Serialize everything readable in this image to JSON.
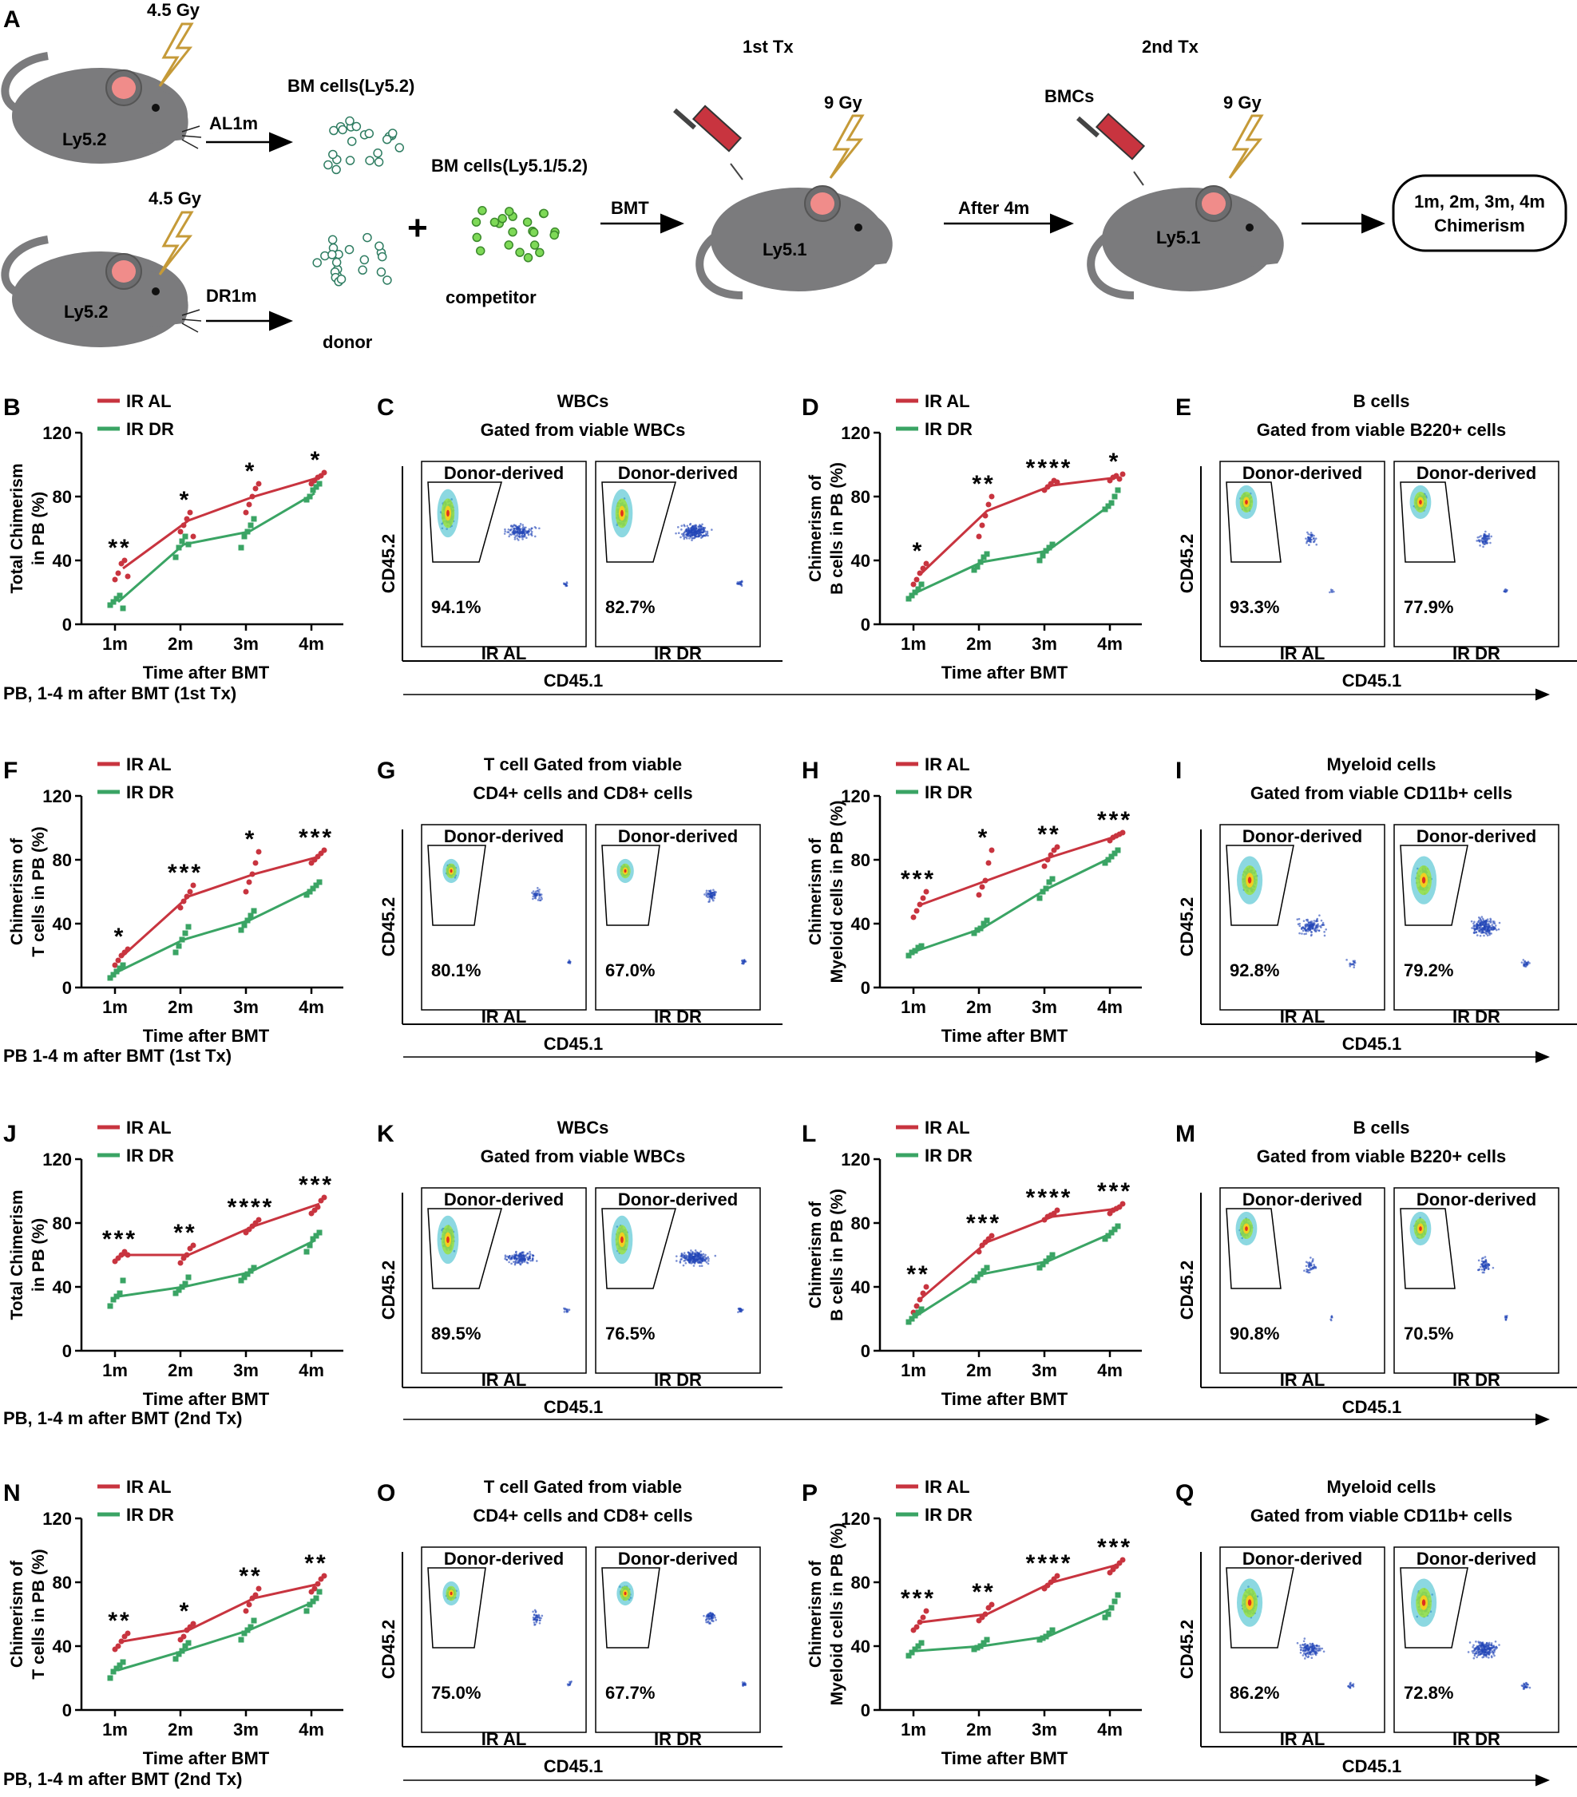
{
  "colors": {
    "al": "#c8343f",
    "dr": "#3aa464",
    "axis": "#000000",
    "dots": "#2346b8",
    "mouse": "#7b7b7d",
    "ear": "#f08c8a",
    "bolt": "#c59a38",
    "syringe": "#c8343f",
    "cells_donor": "#2f7d62",
    "cells_comp": "#7ed957"
  },
  "schematic": {
    "letter": "A",
    "gy_top": "4.5 Gy",
    "gy_bottom": "4.5 Gy",
    "mouse_top": "Ly5.2",
    "mouse_bottom": "Ly5.2",
    "arrow_top": "AL1m",
    "arrow_bottom": "DR1m",
    "bm_top": "BM cells(Ly5.2)",
    "donor": "donor",
    "plus": "+",
    "bm_comp": "BM cells(Ly5.1/5.2)",
    "competitor": "competitor",
    "bmt": "BMT",
    "tx1": "1st Tx",
    "gy1": "9 Gy",
    "recipient1": "Ly5.1",
    "after": "After 4m",
    "tx2": "2nd Tx",
    "bmcs": "BMCs",
    "gy2": "9 Gy",
    "recipient2": "Ly5.1",
    "result_line1": "1m, 2m, 3m, 4m",
    "result_line2": "Chimerism"
  },
  "row_captions": [
    "PB, 1-4 m after BMT  (1st Tx)",
    "PB 1-4 m after BMT  (1st Tx)",
    "PB, 1-4 m after BMT  (2nd Tx)",
    "PB, 1-4 m after BMT  (2nd Tx)"
  ],
  "chart_data": [
    {
      "panel": "B",
      "type": "scatter",
      "ylabel": "Total Chimerism\nin PB (%)",
      "xlabel": "Time after BMT",
      "categories": [
        "1m",
        "2m",
        "3m",
        "4m"
      ],
      "ylim": [
        0,
        120
      ],
      "yticks": [
        0,
        40,
        80,
        120
      ],
      "legend": [
        "IR AL",
        "IR DR"
      ],
      "sig": [
        "**",
        "*",
        "*",
        "*"
      ],
      "series": [
        {
          "name": "IR AL",
          "means": [
            35,
            65,
            80,
            92
          ],
          "points": [
            [
              28,
              32,
              38,
              40,
              30
            ],
            [
              58,
              62,
              66,
              70,
              55
            ],
            [
              70,
              75,
              80,
              85,
              88
            ],
            [
              88,
              90,
              92,
              93,
              95
            ]
          ]
        },
        {
          "name": "IR DR",
          "means": [
            14,
            50,
            58,
            82
          ],
          "points": [
            [
              12,
              14,
              16,
              18,
              10
            ],
            [
              42,
              48,
              52,
              55,
              50
            ],
            [
              48,
              55,
              58,
              62,
              66
            ],
            [
              78,
              80,
              84,
              86,
              88
            ]
          ]
        }
      ]
    },
    {
      "panel": "D",
      "type": "scatter",
      "ylabel": "Chimerism of\nB cells in PB (%)",
      "xlabel": "Time after BMT",
      "categories": [
        "1m",
        "2m",
        "3m",
        "4m"
      ],
      "ylim": [
        0,
        120
      ],
      "yticks": [
        0,
        40,
        80,
        120
      ],
      "legend": [
        "IR AL",
        "IR DR"
      ],
      "sig": [
        "*",
        "**",
        "****",
        "*"
      ],
      "series": [
        {
          "name": "IR AL",
          "means": [
            32,
            71,
            87,
            92
          ],
          "points": [
            [
              25,
              28,
              32,
              35,
              38
            ],
            [
              55,
              62,
              68,
              75,
              80
            ],
            [
              84,
              86,
              88,
              90,
              89
            ],
            [
              90,
              92,
              93,
              91,
              94
            ]
          ]
        },
        {
          "name": "IR DR",
          "means": [
            20,
            39,
            46,
            76
          ],
          "points": [
            [
              16,
              18,
              20,
              22,
              25
            ],
            [
              34,
              36,
              39,
              42,
              44
            ],
            [
              40,
              43,
              46,
              48,
              50
            ],
            [
              72,
              74,
              76,
              80,
              84
            ]
          ]
        }
      ]
    },
    {
      "panel": "F",
      "type": "scatter",
      "ylabel": "Chimerism of\nT cells in PB (%)",
      "xlabel": "Time after BMT",
      "categories": [
        "1m",
        "2m",
        "3m",
        "4m"
      ],
      "ylim": [
        0,
        120
      ],
      "yticks": [
        0,
        40,
        80,
        120
      ],
      "legend": [
        "IR AL",
        "IR DR"
      ],
      "sig": [
        "*",
        "***",
        "*",
        "***"
      ],
      "series": [
        {
          "name": "IR AL",
          "means": [
            20,
            57,
            71,
            82
          ],
          "points": [
            [
              14,
              17,
              20,
              22,
              24
            ],
            [
              50,
              54,
              57,
              60,
              64
            ],
            [
              60,
              66,
              71,
              78,
              85
            ],
            [
              78,
              80,
              82,
              84,
              86
            ]
          ]
        },
        {
          "name": "IR DR",
          "means": [
            10,
            30,
            42,
            62
          ],
          "points": [
            [
              6,
              8,
              10,
              12,
              14
            ],
            [
              22,
              26,
              30,
              34,
              38
            ],
            [
              36,
              39,
              42,
              45,
              48
            ],
            [
              58,
              60,
              62,
              64,
              66
            ]
          ]
        }
      ]
    },
    {
      "panel": "H",
      "type": "scatter",
      "ylabel": "Chimerism of\nMyeloid cells in PB (%)",
      "xlabel": "Time after BMT",
      "categories": [
        "1m",
        "2m",
        "3m",
        "4m"
      ],
      "ylim": [
        0,
        120
      ],
      "yticks": [
        0,
        40,
        80,
        120
      ],
      "legend": [
        "IR AL",
        "IR DR"
      ],
      "sig": [
        "***",
        "*",
        "**",
        "***"
      ],
      "series": [
        {
          "name": "IR AL",
          "means": [
            52,
            67,
            82,
            95
          ],
          "points": [
            [
              44,
              48,
              52,
              56,
              60
            ],
            [
              58,
              63,
              67,
              78,
              86
            ],
            [
              76,
              80,
              83,
              86,
              88
            ],
            [
              92,
              94,
              95,
              96,
              97
            ]
          ]
        },
        {
          "name": "IR DR",
          "means": [
            23,
            37,
            62,
            82
          ],
          "points": [
            [
              20,
              22,
              23,
              25,
              26
            ],
            [
              34,
              36,
              37,
              40,
              42
            ],
            [
              56,
              60,
              62,
              66,
              68
            ],
            [
              78,
              80,
              82,
              84,
              86
            ]
          ]
        }
      ]
    },
    {
      "panel": "J",
      "type": "scatter",
      "ylabel": "Total Chimerism\nin PB (%)",
      "xlabel": "Time after BMT",
      "categories": [
        "1m",
        "2m",
        "3m",
        "4m"
      ],
      "ylim": [
        0,
        120
      ],
      "yticks": [
        0,
        40,
        80,
        120
      ],
      "legend": [
        "IR AL",
        "IR DR"
      ],
      "sig": [
        "***",
        "**",
        "****",
        "***"
      ],
      "series": [
        {
          "name": "IR AL",
          "means": [
            60,
            60,
            78,
            92
          ],
          "points": [
            [
              56,
              58,
              60,
              62,
              60
            ],
            [
              55,
              58,
              60,
              64,
              66
            ],
            [
              74,
              76,
              78,
              80,
              82
            ],
            [
              86,
              88,
              90,
              94,
              96
            ]
          ]
        },
        {
          "name": "IR DR",
          "means": [
            34,
            40,
            49,
            69
          ],
          "points": [
            [
              28,
              32,
              34,
              36,
              44
            ],
            [
              36,
              38,
              40,
              42,
              46
            ],
            [
              44,
              46,
              48,
              50,
              52
            ],
            [
              62,
              66,
              70,
              72,
              74
            ]
          ]
        }
      ]
    },
    {
      "panel": "L",
      "type": "scatter",
      "ylabel": "Chimerism of\nB cells in PB (%)",
      "xlabel": "Time after BMT",
      "categories": [
        "1m",
        "2m",
        "3m",
        "4m"
      ],
      "ylim": [
        0,
        120
      ],
      "yticks": [
        0,
        40,
        80,
        120
      ],
      "legend": [
        "IR AL",
        "IR DR"
      ],
      "sig": [
        "**",
        "***",
        "****",
        "***"
      ],
      "series": [
        {
          "name": "IR AL",
          "means": [
            33,
            68,
            84,
            89
          ],
          "points": [
            [
              24,
              28,
              32,
              36,
              40
            ],
            [
              62,
              66,
              68,
              70,
              72
            ],
            [
              82,
              84,
              85,
              86,
              88
            ],
            [
              86,
              88,
              89,
              90,
              92
            ]
          ]
        },
        {
          "name": "IR DR",
          "means": [
            22,
            48,
            56,
            74
          ],
          "points": [
            [
              18,
              20,
              22,
              24,
              26
            ],
            [
              44,
              46,
              48,
              50,
              52
            ],
            [
              52,
              54,
              56,
              58,
              60
            ],
            [
              70,
              72,
              74,
              76,
              78
            ]
          ]
        }
      ]
    },
    {
      "panel": "N",
      "type": "scatter",
      "ylabel": "Chimerism of\nT cells in PB (%)",
      "xlabel": "Time after BMT",
      "categories": [
        "1m",
        "2m",
        "3m",
        "4m"
      ],
      "ylim": [
        0,
        120
      ],
      "yticks": [
        0,
        40,
        80,
        120
      ],
      "legend": [
        "IR AL",
        "IR DR"
      ],
      "sig": [
        "**",
        "*",
        "**",
        "**"
      ],
      "series": [
        {
          "name": "IR AL",
          "means": [
            43,
            50,
            70,
            79
          ],
          "points": [
            [
              38,
              40,
              43,
              46,
              48
            ],
            [
              44,
              46,
              50,
              52,
              54
            ],
            [
              62,
              66,
              70,
              72,
              76
            ],
            [
              74,
              76,
              79,
              82,
              84
            ]
          ]
        },
        {
          "name": "IR DR",
          "means": [
            25,
            37,
            50,
            68
          ],
          "points": [
            [
              20,
              24,
              26,
              28,
              30
            ],
            [
              32,
              35,
              37,
              40,
              42
            ],
            [
              44,
              48,
              50,
              52,
              56
            ],
            [
              62,
              66,
              68,
              70,
              74
            ]
          ]
        }
      ]
    },
    {
      "panel": "P",
      "type": "scatter",
      "ylabel": "Chimerism of\nMyeloid cells in PB (%)",
      "xlabel": "Time after BMT",
      "categories": [
        "1m",
        "2m",
        "3m",
        "4m"
      ],
      "ylim": [
        0,
        120
      ],
      "yticks": [
        0,
        40,
        80,
        120
      ],
      "legend": [
        "IR AL",
        "IR DR"
      ],
      "sig": [
        "***",
        "**",
        "****",
        "***"
      ],
      "series": [
        {
          "name": "IR AL",
          "means": [
            55,
            60,
            80,
            91
          ],
          "points": [
            [
              50,
              52,
              55,
              58,
              62
            ],
            [
              56,
              58,
              60,
              64,
              66
            ],
            [
              76,
              78,
              80,
              82,
              84
            ],
            [
              86,
              88,
              90,
              92,
              94
            ]
          ]
        },
        {
          "name": "IR DR",
          "means": [
            37,
            40,
            46,
            64
          ],
          "points": [
            [
              34,
              36,
              38,
              40,
              42
            ],
            [
              38,
              39,
              40,
              42,
              44
            ],
            [
              44,
              45,
              46,
              48,
              50
            ],
            [
              58,
              60,
              64,
              68,
              72
            ]
          ]
        }
      ]
    }
  ],
  "flow_panels": [
    {
      "panel": "C",
      "title1": "WBCs",
      "title2": "Gated from viable WBCs",
      "gate": "Donor-derived",
      "ylabel": "CD45.2",
      "xlabel": "CD45.1",
      "plots": [
        {
          "label": "IR AL",
          "pct": "94.1%"
        },
        {
          "label": "IR DR",
          "pct": "82.7%"
        }
      ]
    },
    {
      "panel": "E",
      "title1": "B cells",
      "title2": "Gated from viable B220+ cells",
      "gate": "Donor-derived",
      "ylabel": "CD45.2",
      "xlabel": "CD45.1",
      "plots": [
        {
          "label": "IR AL",
          "pct": "93.3%"
        },
        {
          "label": "IR DR",
          "pct": "77.9%"
        }
      ]
    },
    {
      "panel": "G",
      "title1": "T cell Gated from viable",
      "title2": "CD4+ cells and CD8+ cells",
      "gate": "Donor-derived",
      "ylabel": "CD45.2",
      "xlabel": "CD45.1",
      "plots": [
        {
          "label": "IR AL",
          "pct": "80.1%"
        },
        {
          "label": "IR DR",
          "pct": "67.0%"
        }
      ]
    },
    {
      "panel": "I",
      "title1": "Myeloid cells",
      "title2": "Gated from viable CD11b+ cells",
      "gate": "Donor-derived",
      "ylabel": "CD45.2",
      "xlabel": "CD45.1",
      "plots": [
        {
          "label": "IR AL",
          "pct": "92.8%"
        },
        {
          "label": "IR DR",
          "pct": "79.2%"
        }
      ]
    },
    {
      "panel": "K",
      "title1": "WBCs",
      "title2": "Gated from viable WBCs",
      "gate": "Donor-derived",
      "ylabel": "CD45.2",
      "xlabel": "CD45.1",
      "plots": [
        {
          "label": "IR AL",
          "pct": "89.5%"
        },
        {
          "label": "IR DR",
          "pct": "76.5%"
        }
      ]
    },
    {
      "panel": "M",
      "title1": "B cells",
      "title2": "Gated from viable B220+ cells",
      "gate": "Donor-derived",
      "ylabel": "CD45.2",
      "xlabel": "CD45.1",
      "plots": [
        {
          "label": "IR AL",
          "pct": "90.8%"
        },
        {
          "label": "IR DR",
          "pct": "70.5%"
        }
      ]
    },
    {
      "panel": "O",
      "title1": "T cell Gated from viable",
      "title2": "CD4+ cells and CD8+ cells",
      "gate": "Donor-derived",
      "ylabel": "CD45.2",
      "xlabel": "CD45.1",
      "plots": [
        {
          "label": "IR AL",
          "pct": "75.0%"
        },
        {
          "label": "IR DR",
          "pct": "67.7%"
        }
      ]
    },
    {
      "panel": "Q",
      "title1": "Myeloid cells",
      "title2": "Gated from viable CD11b+ cells",
      "gate": "Donor-derived",
      "ylabel": "CD45.2",
      "xlabel": "CD45.1",
      "plots": [
        {
          "label": "IR AL",
          "pct": "86.2%"
        },
        {
          "label": "IR DR",
          "pct": "72.8%"
        }
      ]
    }
  ]
}
